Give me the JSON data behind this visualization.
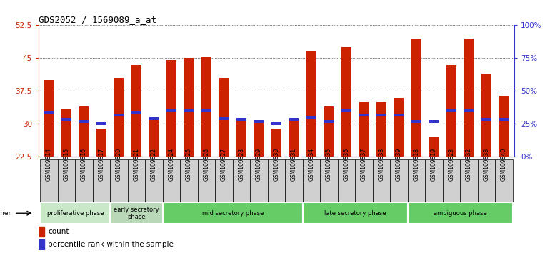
{
  "title": "GDS2052 / 1569089_a_at",
  "samples": [
    "GSM109814",
    "GSM109815",
    "GSM109816",
    "GSM109817",
    "GSM109820",
    "GSM109821",
    "GSM109822",
    "GSM109824",
    "GSM109825",
    "GSM109826",
    "GSM109827",
    "GSM109828",
    "GSM109829",
    "GSM109830",
    "GSM109831",
    "GSM109834",
    "GSM109835",
    "GSM109836",
    "GSM109837",
    "GSM109838",
    "GSM109839",
    "GSM109818",
    "GSM109819",
    "GSM109823",
    "GSM109832",
    "GSM109833",
    "GSM109840"
  ],
  "count_values": [
    40.0,
    33.5,
    34.0,
    29.0,
    40.5,
    43.5,
    31.0,
    44.5,
    45.0,
    45.3,
    40.5,
    31.0,
    30.5,
    29.0,
    31.0,
    46.5,
    34.0,
    47.5,
    35.0,
    35.0,
    36.0,
    49.5,
    27.0,
    43.5,
    49.5,
    41.5,
    36.5
  ],
  "percentile_values": [
    32.5,
    31.0,
    30.5,
    30.0,
    32.0,
    32.5,
    31.2,
    33.0,
    33.0,
    33.0,
    31.2,
    31.0,
    30.5,
    30.0,
    31.0,
    31.5,
    30.5,
    33.0,
    32.0,
    32.0,
    32.0,
    30.5,
    30.5,
    33.0,
    33.0,
    31.0,
    31.0
  ],
  "ymin": 22.5,
  "ymax": 52.5,
  "yticks_left": [
    22.5,
    30.0,
    37.5,
    45.0,
    52.5
  ],
  "ytick_labels_left": [
    "22.5",
    "30",
    "37.5",
    "45",
    "52.5"
  ],
  "yticks_right_pct": [
    0,
    25,
    50,
    75,
    100
  ],
  "bar_width": 0.55,
  "red_color": "#cc2200",
  "blue_color": "#3333cc",
  "label_box_color": "#d0d0d0",
  "phase_light_green": "#c8e8c8",
  "phase_medium_green": "#66cc66",
  "phase_early_green": "#b8d8b8",
  "phases": [
    {
      "name": "proliferative phase",
      "start": 0,
      "end": 4,
      "color": "#c8e8c8"
    },
    {
      "name": "early secretory\nphase",
      "start": 4,
      "end": 7,
      "color": "#b8d8b8"
    },
    {
      "name": "mid secretory phase",
      "start": 7,
      "end": 15,
      "color": "#66cc66"
    },
    {
      "name": "late secretory phase",
      "start": 15,
      "end": 21,
      "color": "#66cc66"
    },
    {
      "name": "ambiguous phase",
      "start": 21,
      "end": 27,
      "color": "#66cc66"
    }
  ]
}
